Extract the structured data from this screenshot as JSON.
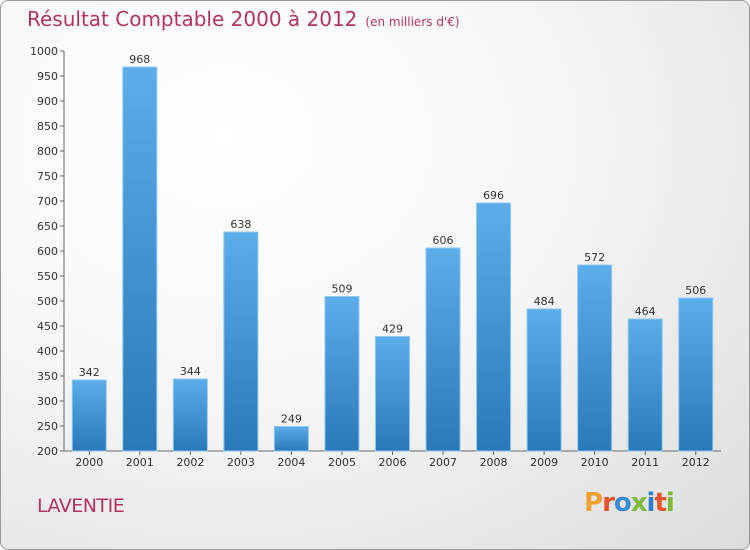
{
  "title": "Résultat Comptable 2000 à 2012",
  "subtitle": "(en milliers d'€)",
  "commune": "LAVENTIE",
  "logo": {
    "p": "P",
    "r": "r",
    "o": "o",
    "x": "x",
    "i": "i",
    "t": "t",
    "i2": "i"
  },
  "colors": {
    "bar_top": "#5dadea",
    "bar_bottom": "#2a78b8",
    "title": "#b0345f"
  },
  "chart_data": {
    "type": "bar",
    "title": "Résultat Comptable 2000 à 2012",
    "xlabel": "",
    "ylabel": "",
    "categories": [
      "2000",
      "2001",
      "2002",
      "2003",
      "2004",
      "2005",
      "2006",
      "2007",
      "2008",
      "2009",
      "2010",
      "2011",
      "2012"
    ],
    "values": [
      342,
      968,
      344,
      638,
      249,
      509,
      429,
      606,
      696,
      484,
      572,
      464,
      506
    ],
    "ylim": [
      200,
      1000
    ],
    "yticks": [
      200,
      250,
      300,
      350,
      400,
      450,
      500,
      550,
      600,
      650,
      700,
      750,
      800,
      850,
      900,
      950,
      1000
    ],
    "grid": false
  }
}
